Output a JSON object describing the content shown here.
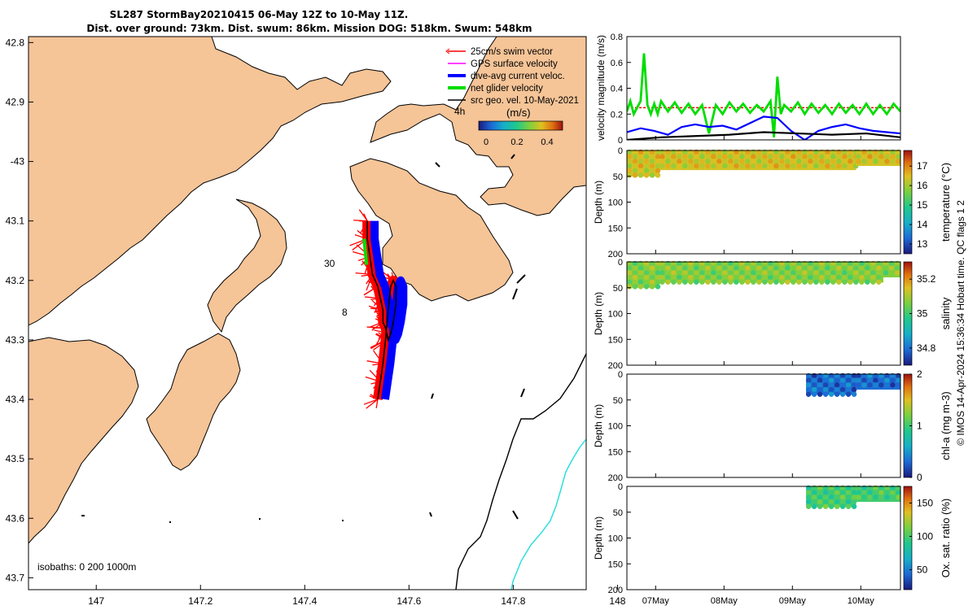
{
  "title": {
    "line1": "SL287 StormBay20210415 06-May 12Z to 10-May 11Z.",
    "line2": "Dist. over ground: 73km. Dist. swum: 86km. Mission DOG: 518km. Swum: 548km"
  },
  "colors": {
    "land": "#f5c497",
    "swim": "#ff0000",
    "gps": "#ff00ff",
    "diveavg": "#0000ff",
    "net": "#00dd00",
    "geo": "#000000",
    "iso200": "#000000",
    "iso1000": "#22dddd"
  },
  "chart_data": [
    {
      "type": "map",
      "name": "track-map",
      "xlim": [
        146.87,
        147.94
      ],
      "ylim": [
        -43.72,
        -42.79
      ],
      "xticks": [
        147,
        147.2,
        147.4,
        147.6,
        147.8,
        148
      ],
      "yticks": [
        -42.8,
        -42.9,
        -43,
        -43.1,
        -43.2,
        -43.3,
        -43.4,
        -43.5,
        -43.6,
        -43.7
      ],
      "xticklabels": [
        "147",
        "147.2",
        "147.4",
        "147.6",
        "147.8",
        "148"
      ],
      "yticklabels": [
        "42.8",
        "42.9",
        "-43",
        "43.1",
        "43.2",
        "43.3",
        "43.4",
        "43.5",
        "43.6",
        "43.7"
      ],
      "legend": [
        {
          "label": "25cm/s swim vector",
          "color": "#ff0000"
        },
        {
          "label": "GPS surface velocity",
          "color": "#ff00ff"
        },
        {
          "label": "dive-avg current veloc.",
          "color": "#0000ff"
        },
        {
          "label": "net glider velocity",
          "color": "#00dd00"
        },
        {
          "label": "src geo. vel. 10-May-2021",
          "color": "#000000"
        }
      ],
      "scale_label": "4h",
      "colorbar": {
        "label": "(m/s)",
        "ticks": [
          0,
          0.2,
          0.4
        ],
        "ticklabels": [
          "0",
          "0.2",
          "0.4"
        ],
        "range": [
          0,
          0.5
        ]
      },
      "isobaths_label": "isobaths: 0   200   1000m",
      "track_annotations": [
        "30",
        "8"
      ],
      "track": {
        "lon": [
          147.52,
          147.52,
          147.525,
          147.53,
          147.54,
          147.545,
          147.55,
          147.55,
          147.555,
          147.56,
          147.565,
          147.57,
          147.575,
          147.575,
          147.57,
          147.565,
          147.56,
          147.555,
          147.55,
          147.545,
          147.54
        ],
        "lat": [
          -43.1,
          -43.13,
          -43.16,
          -43.19,
          -43.21,
          -43.23,
          -43.25,
          -43.27,
          -43.28,
          -43.3,
          -43.29,
          -43.27,
          -43.24,
          -43.21,
          -43.2,
          -43.21,
          -43.25,
          -43.3,
          -43.34,
          -43.37,
          -43.4
        ]
      }
    },
    {
      "type": "line",
      "name": "velocity-magnitude",
      "ylabel": "velocity magnitude (m/s)",
      "ylim": [
        0,
        0.8
      ],
      "xlim": [
        0,
        4
      ],
      "yticks": [
        0,
        0.2,
        0.4,
        0.6,
        0.8
      ],
      "yticklabels": [
        "0",
        "0.2",
        "0.4",
        "0.6",
        "0.8"
      ],
      "series": [
        {
          "name": "swim",
          "color": "#ff0000",
          "x": [
            0,
            4
          ],
          "y": [
            0.25,
            0.25
          ]
        },
        {
          "name": "net glider velocity",
          "color": "#00dd00",
          "x": [
            0,
            0.05,
            0.1,
            0.15,
            0.2,
            0.25,
            0.3,
            0.35,
            0.4,
            0.45,
            0.5,
            0.6,
            0.7,
            0.8,
            0.9,
            1.0,
            1.1,
            1.2,
            1.3,
            1.4,
            1.5,
            1.6,
            1.7,
            1.8,
            1.9,
            2.0,
            2.1,
            2.15,
            2.2,
            2.25,
            2.3,
            2.4,
            2.5,
            2.6,
            2.7,
            2.8,
            2.9,
            3.0,
            3.1,
            3.2,
            3.3,
            3.4,
            3.5,
            3.6,
            3.7,
            3.8,
            3.9,
            4.0
          ],
          "y": [
            0.22,
            0.3,
            0.2,
            0.25,
            0.3,
            0.67,
            0.27,
            0.2,
            0.28,
            0.2,
            0.3,
            0.22,
            0.29,
            0.21,
            0.28,
            0.2,
            0.27,
            0.05,
            0.27,
            0.2,
            0.29,
            0.22,
            0.28,
            0.21,
            0.27,
            0.22,
            0.3,
            0.02,
            0.49,
            0.2,
            0.27,
            0.22,
            0.29,
            0.2,
            0.28,
            0.21,
            0.27,
            0.2,
            0.28,
            0.21,
            0.27,
            0.2,
            0.28,
            0.2,
            0.27,
            0.2,
            0.28,
            0.22
          ]
        },
        {
          "name": "dive-avg current",
          "color": "#0000ff",
          "x": [
            0,
            0.2,
            0.4,
            0.6,
            0.8,
            1.0,
            1.2,
            1.4,
            1.6,
            1.8,
            2.0,
            2.2,
            2.4,
            2.6,
            2.8,
            3.0,
            3.2,
            3.4,
            3.6,
            3.8,
            4.0
          ],
          "y": [
            0.06,
            0.09,
            0.07,
            0.04,
            0.1,
            0.12,
            0.1,
            0.11,
            0.08,
            0.13,
            0.18,
            0.17,
            0.07,
            0.0,
            0.07,
            0.1,
            0.12,
            0.09,
            0.07,
            0.06,
            0.05
          ]
        },
        {
          "name": "src geo",
          "color": "#000000",
          "x": [
            0,
            0.5,
            1.0,
            1.5,
            2.0,
            2.5,
            3.0,
            3.5,
            4.0
          ],
          "y": [
            0.0,
            0.02,
            0.03,
            0.04,
            0.06,
            0.05,
            0.04,
            0.05,
            0.02
          ]
        }
      ]
    },
    {
      "type": "heatmap",
      "name": "temperature",
      "ylabel": "Depth (m)",
      "ylim": [
        200,
        0
      ],
      "yticks": [
        0,
        50,
        100,
        150,
        200
      ],
      "cbar_label": "temperature (°C)",
      "cbar_ticks": [
        "17",
        "16",
        "15",
        "14",
        "13"
      ],
      "cbar_range": [
        12.5,
        17.8
      ],
      "cbar_stops": [
        "#1b1a7e",
        "#1c6ad6",
        "#15b0c8",
        "#20c88c",
        "#7ad040",
        "#e0c020",
        "#e07010",
        "#a01010"
      ],
      "value": 16.2,
      "blocks": [
        {
          "x0": 0,
          "x1": 0.48,
          "d1": 50
        },
        {
          "x0": 0.48,
          "x1": 3.35,
          "d1": 38
        },
        {
          "x0": 3.35,
          "x1": 4.0,
          "d1": 30
        }
      ]
    },
    {
      "type": "heatmap",
      "name": "salinity",
      "ylabel": "Depth (m)",
      "ylim": [
        200,
        0
      ],
      "yticks": [
        0,
        50,
        100,
        150,
        200
      ],
      "cbar_label": "salinity",
      "cbar_ticks": [
        "35.2",
        "35",
        "34.8"
      ],
      "cbar_range": [
        34.7,
        35.3
      ],
      "value": 35.05,
      "blocks": [
        {
          "x0": 0,
          "x1": 0.48,
          "d1": 50
        },
        {
          "x0": 0.48,
          "x1": 3.75,
          "d1": 40
        },
        {
          "x0": 3.75,
          "x1": 4.0,
          "d1": 30
        }
      ]
    },
    {
      "type": "heatmap",
      "name": "chlorophyll",
      "ylabel": "Depth (m)",
      "ylim": [
        200,
        0
      ],
      "yticks": [
        0,
        50,
        100,
        150,
        200
      ],
      "cbar_label": "chl-a (mg m-3)",
      "cbar_ticks": [
        "2",
        "1",
        "0"
      ],
      "cbar_range": [
        0,
        2
      ],
      "value": 0.3,
      "blocks": [
        {
          "x0": 2.62,
          "x1": 3.35,
          "d1": 40
        },
        {
          "x0": 3.35,
          "x1": 4.0,
          "d1": 30
        }
      ]
    },
    {
      "type": "heatmap",
      "name": "oxygen",
      "ylabel": "Depth (m)",
      "ylim": [
        200,
        0
      ],
      "yticks": [
        0,
        50,
        100,
        150,
        200
      ],
      "cbar_label": "Ox. sat. ratio (%)",
      "cbar_ticks": [
        "150",
        "100",
        "50"
      ],
      "cbar_range": [
        20,
        175
      ],
      "value": 95,
      "blocks": [
        {
          "x0": 2.62,
          "x1": 3.35,
          "d1": 40
        },
        {
          "x0": 3.35,
          "x1": 4.0,
          "d1": 30
        }
      ]
    }
  ],
  "time_axis": {
    "labels": [
      "07May",
      "08May",
      "09May",
      "10May"
    ],
    "positions": [
      0.42,
      1.42,
      2.42,
      3.42
    ]
  },
  "footer": {
    "text": "© IMOS 14-Apr-2024 15:36:34 Hobart time. QC flags 1  2"
  }
}
